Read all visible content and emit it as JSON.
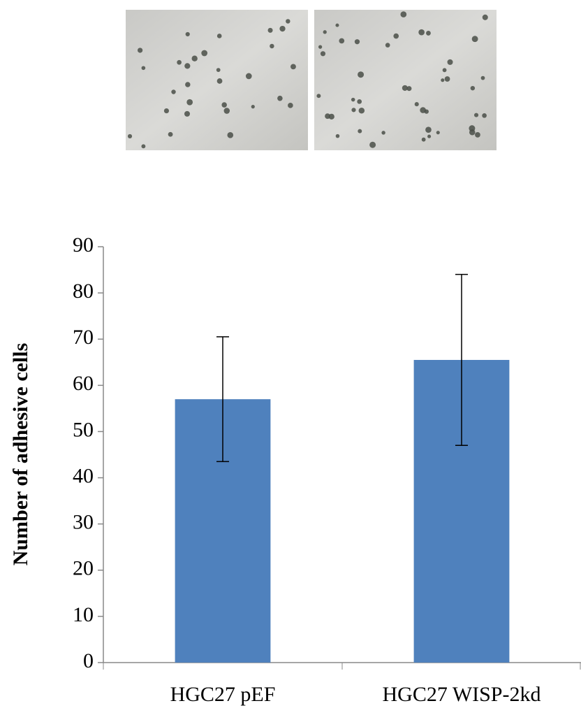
{
  "chart_data": {
    "type": "bar",
    "y_label": "Number of adhesive cells",
    "categories": [
      "HGC27 pEF",
      "HGC27 WISP-2kd"
    ],
    "values": [
      57,
      65.5
    ],
    "errors": [
      13.5,
      18.5
    ],
    "color": "#4f81bd",
    "ylim": [
      0,
      90
    ],
    "yticks": [
      0,
      10,
      20,
      30,
      40,
      50,
      60,
      70,
      80,
      90
    ],
    "grid": false
  }
}
